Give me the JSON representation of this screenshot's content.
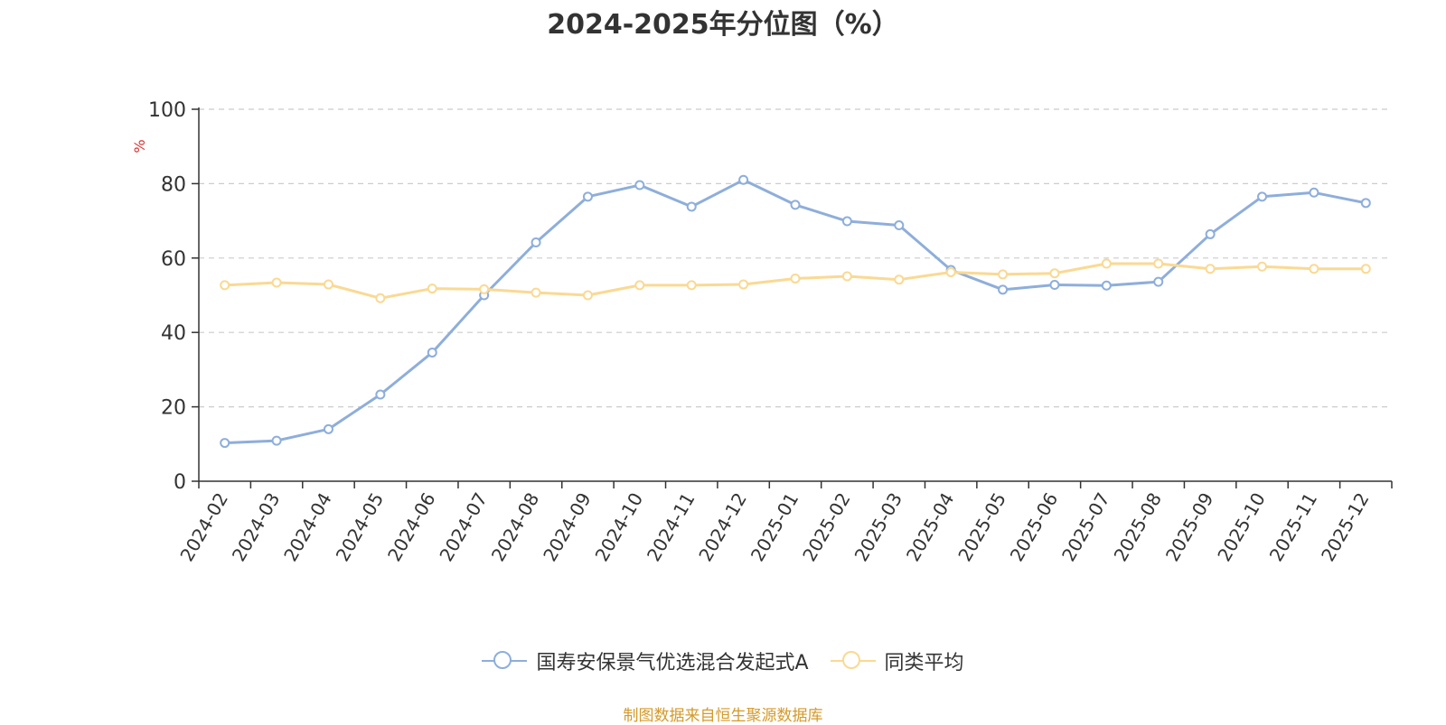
{
  "chart_data": {
    "type": "line",
    "title": "2024-2025年分位图（%）",
    "ylabel": "%",
    "xlabel": "",
    "ylim": [
      0,
      100
    ],
    "yticks": [
      0,
      20,
      40,
      60,
      80,
      100
    ],
    "grid": true,
    "legend_position": "bottom",
    "x": [
      "2024-02",
      "2024-03",
      "2024-04",
      "2024-05",
      "2024-06",
      "2024-07",
      "2024-08",
      "2024-09",
      "2024-10",
      "2024-11",
      "2024-12",
      "2025-01",
      "2025-02",
      "2025-03",
      "2025-04",
      "2025-05",
      "2025-06",
      "2025-07",
      "2025-08",
      "2025-09",
      "2025-10",
      "2025-11",
      "2025-12"
    ],
    "series": [
      {
        "name": "国寿安保景气优选混合发起式A",
        "color": "#8eaedb",
        "values": [
          10.3,
          10.9,
          14.0,
          23.3,
          34.6,
          50.0,
          64.2,
          76.5,
          79.6,
          73.8,
          81.0,
          74.3,
          69.9,
          68.8,
          56.8,
          51.5,
          52.8,
          52.6,
          53.6,
          66.4,
          76.5,
          77.6,
          74.8
        ]
      },
      {
        "name": "同类平均",
        "color": "#fad993",
        "values": [
          52.7,
          53.4,
          52.9,
          49.2,
          51.8,
          51.6,
          50.7,
          50.0,
          52.7,
          52.7,
          52.9,
          54.5,
          55.1,
          54.2,
          56.2,
          55.6,
          55.9,
          58.5,
          58.5,
          57.1,
          57.7,
          57.1,
          57.1
        ]
      }
    ]
  },
  "source_note": "制图数据来自恒生聚源数据库",
  "colors": {
    "axis": "#333333",
    "grid": "#cccccc",
    "ylabel": "#e03030"
  }
}
